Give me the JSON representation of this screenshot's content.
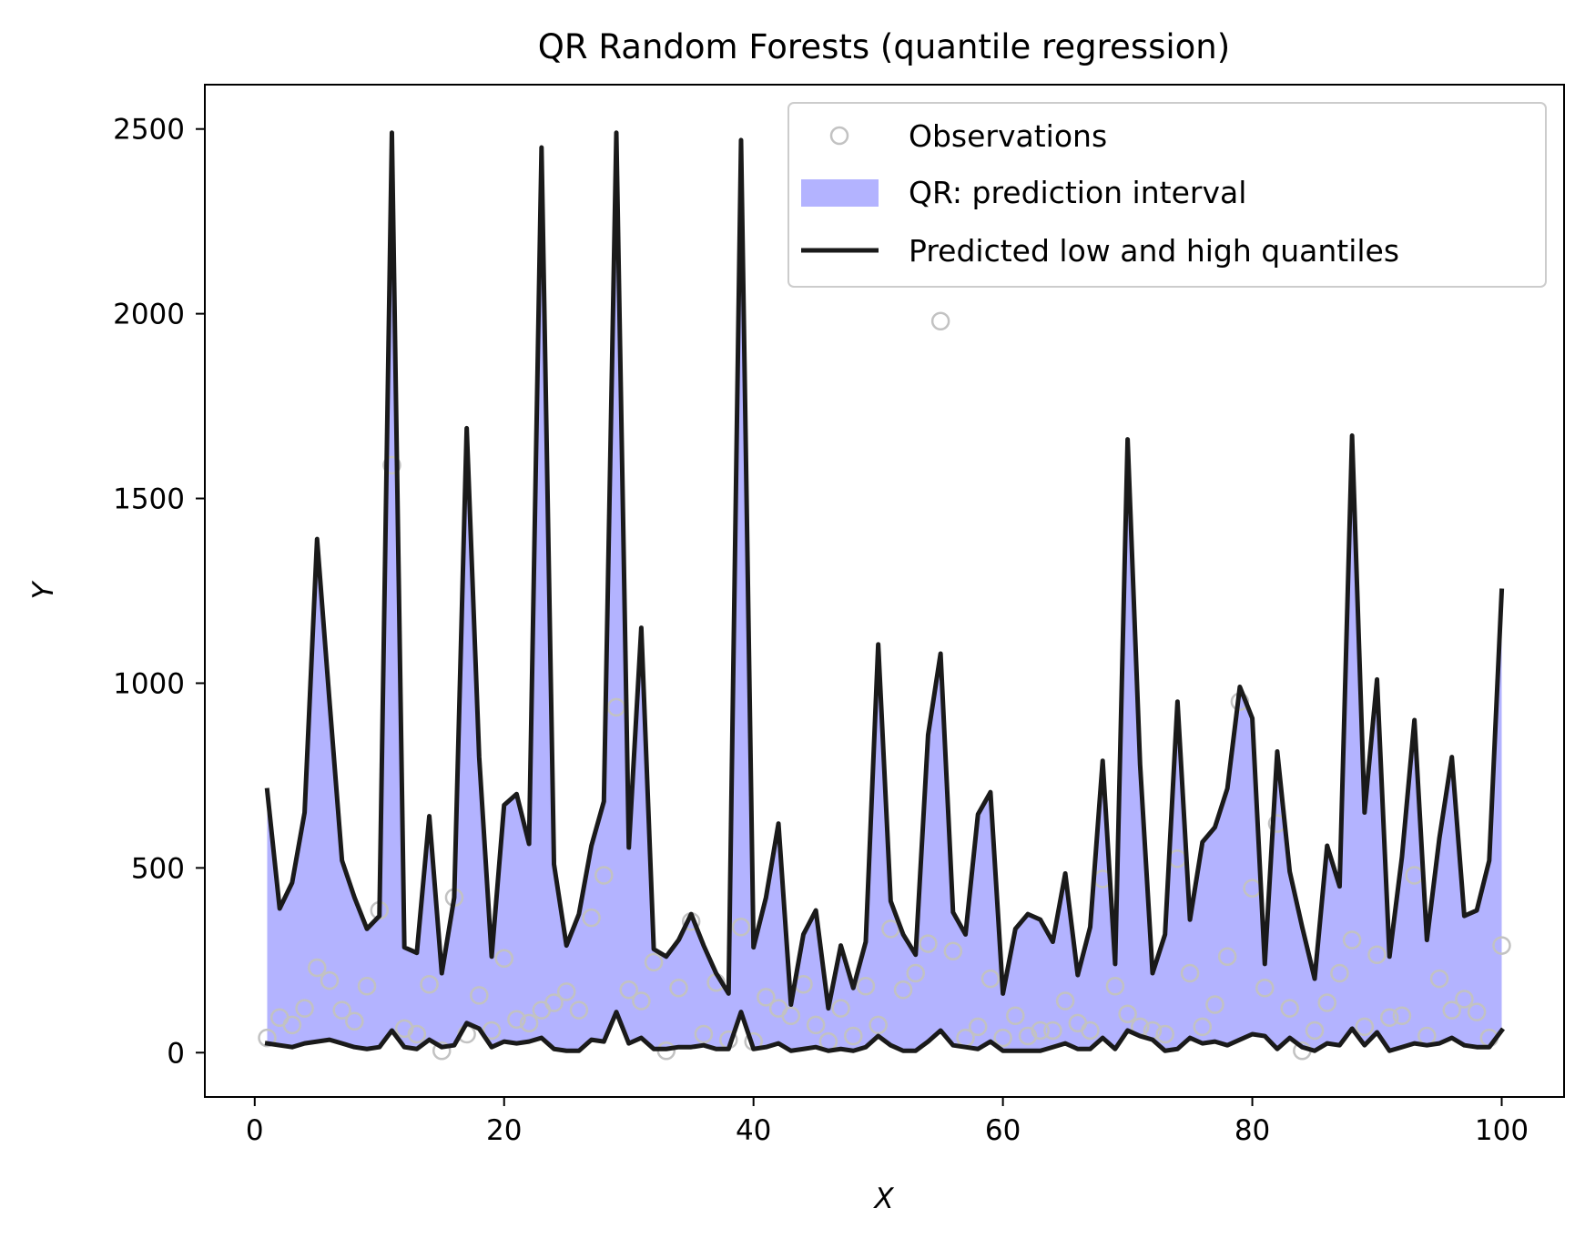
{
  "chart_data": {
    "type": "line",
    "title": "QR Random Forests (quantile regression)",
    "xlabel": "X",
    "ylabel": "Y",
    "xlim": [
      -4,
      105
    ],
    "ylim": [
      -120,
      2620
    ],
    "xticks": [
      0,
      20,
      40,
      60,
      80,
      100
    ],
    "yticks": [
      0,
      500,
      1000,
      1500,
      2000,
      2500
    ],
    "grid": false,
    "legend_position": "top-right",
    "legend": [
      {
        "label": "Observations",
        "kind": "marker"
      },
      {
        "label": "QR: prediction interval",
        "kind": "patch"
      },
      {
        "label": "Predicted low and high quantiles",
        "kind": "line"
      }
    ],
    "colors": {
      "interval_fill": "#b3b3ff",
      "quantile_line": "#1a1a1a",
      "observation_marker": "#c2c2c2"
    },
    "x": [
      1,
      2,
      3,
      4,
      5,
      6,
      7,
      8,
      9,
      10,
      11,
      12,
      13,
      14,
      15,
      16,
      17,
      18,
      19,
      20,
      21,
      22,
      23,
      24,
      25,
      26,
      27,
      28,
      29,
      30,
      31,
      32,
      33,
      34,
      35,
      36,
      37,
      38,
      39,
      40,
      41,
      42,
      43,
      44,
      45,
      46,
      47,
      48,
      49,
      50,
      51,
      52,
      53,
      54,
      55,
      56,
      57,
      58,
      59,
      60,
      61,
      62,
      63,
      64,
      65,
      66,
      67,
      68,
      69,
      70,
      71,
      72,
      73,
      74,
      75,
      76,
      77,
      78,
      79,
      80,
      81,
      82,
      83,
      84,
      85,
      86,
      87,
      88,
      89,
      90,
      91,
      92,
      93,
      94,
      95,
      96,
      97,
      98,
      99,
      100
    ],
    "series": [
      {
        "name": "high quantile",
        "values": [
          710,
          390,
          460,
          650,
          1390,
          950,
          520,
          420,
          335,
          370,
          2490,
          285,
          270,
          640,
          215,
          420,
          1690,
          800,
          260,
          670,
          700,
          565,
          2450,
          510,
          290,
          375,
          560,
          680,
          2490,
          555,
          1150,
          280,
          260,
          305,
          375,
          290,
          215,
          160,
          2470,
          285,
          420,
          620,
          130,
          320,
          385,
          120,
          290,
          175,
          300,
          1105,
          410,
          320,
          265,
          860,
          1080,
          380,
          320,
          645,
          705,
          160,
          335,
          375,
          360,
          300,
          485,
          210,
          340,
          790,
          240,
          1660,
          780,
          215,
          320,
          950,
          360,
          570,
          610,
          715,
          990,
          905,
          240,
          815,
          490,
          340,
          200,
          560,
          450,
          1670,
          650,
          1010,
          260,
          530,
          900,
          305,
          580,
          800,
          370,
          385,
          520,
          1250
        ]
      },
      {
        "name": "low quantile",
        "values": [
          25,
          20,
          15,
          25,
          30,
          35,
          25,
          15,
          10,
          15,
          60,
          15,
          10,
          35,
          15,
          20,
          80,
          65,
          15,
          30,
          25,
          30,
          40,
          10,
          5,
          5,
          35,
          30,
          110,
          25,
          40,
          10,
          10,
          15,
          15,
          20,
          10,
          10,
          110,
          10,
          15,
          25,
          5,
          10,
          15,
          5,
          10,
          5,
          15,
          45,
          20,
          5,
          5,
          30,
          60,
          20,
          15,
          10,
          30,
          5,
          5,
          5,
          5,
          15,
          25,
          10,
          10,
          40,
          10,
          60,
          45,
          35,
          5,
          10,
          40,
          25,
          30,
          20,
          35,
          50,
          45,
          10,
          40,
          15,
          5,
          25,
          20,
          65,
          20,
          55,
          5,
          15,
          25,
          20,
          25,
          40,
          20,
          15,
          15,
          60
        ]
      },
      {
        "name": "Observations",
        "values": [
          40,
          95,
          75,
          120,
          230,
          195,
          115,
          85,
          180,
          385,
          1590,
          65,
          50,
          185,
          5,
          420,
          50,
          155,
          60,
          255,
          90,
          80,
          115,
          135,
          165,
          115,
          365,
          480,
          935,
          170,
          140,
          245,
          5,
          175,
          355,
          50,
          190,
          35,
          340,
          30,
          150,
          120,
          100,
          185,
          75,
          30,
          120,
          45,
          180,
          75,
          335,
          170,
          215,
          295,
          1980,
          275,
          40,
          70,
          200,
          40,
          100,
          45,
          60,
          60,
          140,
          80,
          60,
          470,
          180,
          105,
          70,
          60,
          50,
          525,
          215,
          70,
          130,
          260,
          950,
          445,
          175,
          620,
          120,
          5,
          60,
          135,
          215,
          305,
          70,
          265,
          95,
          100,
          480,
          45,
          200,
          115,
          145,
          110,
          40,
          290
        ]
      }
    ]
  }
}
